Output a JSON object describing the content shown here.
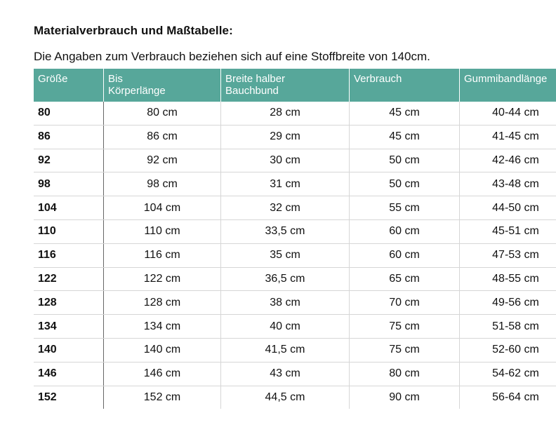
{
  "title": "Materialverbrauch und Maßtabelle:",
  "subtitle": "Die Angaben zum Verbrauch beziehen sich auf eine Stoffbreite von 140cm.",
  "accent_color": "#57a79a",
  "table": {
    "headers": [
      [
        "Größe"
      ],
      [
        "Bis",
        "Körperlänge"
      ],
      [
        "Breite halber",
        "Bauchbund"
      ],
      [
        "Verbrauch"
      ],
      [
        "Gummibandlänge"
      ]
    ],
    "rows": [
      [
        "80",
        "80 cm",
        "28 cm",
        "45 cm",
        "40-44 cm"
      ],
      [
        "86",
        "86 cm",
        "29 cm",
        "45 cm",
        "41-45 cm"
      ],
      [
        "92",
        "92 cm",
        "30 cm",
        "50 cm",
        "42-46 cm"
      ],
      [
        "98",
        "98 cm",
        "31 cm",
        "50 cm",
        "43-48 cm"
      ],
      [
        "104",
        "104 cm",
        "32 cm",
        "55 cm",
        "44-50 cm"
      ],
      [
        "110",
        "110 cm",
        "33,5 cm",
        "60 cm",
        "45-51 cm"
      ],
      [
        "116",
        "116 cm",
        "35 cm",
        "60 cm",
        "47-53 cm"
      ],
      [
        "122",
        "122 cm",
        "36,5 cm",
        "65 cm",
        "48-55 cm"
      ],
      [
        "128",
        "128 cm",
        "38 cm",
        "70 cm",
        "49-56 cm"
      ],
      [
        "134",
        "134 cm",
        "40 cm",
        "75 cm",
        "51-58 cm"
      ],
      [
        "140",
        "140 cm",
        "41,5 cm",
        "75 cm",
        "52-60 cm"
      ],
      [
        "146",
        "146 cm",
        "43 cm",
        "80 cm",
        "54-62 cm"
      ],
      [
        "152",
        "152 cm",
        "44,5 cm",
        "90 cm",
        "56-64 cm"
      ]
    ]
  }
}
